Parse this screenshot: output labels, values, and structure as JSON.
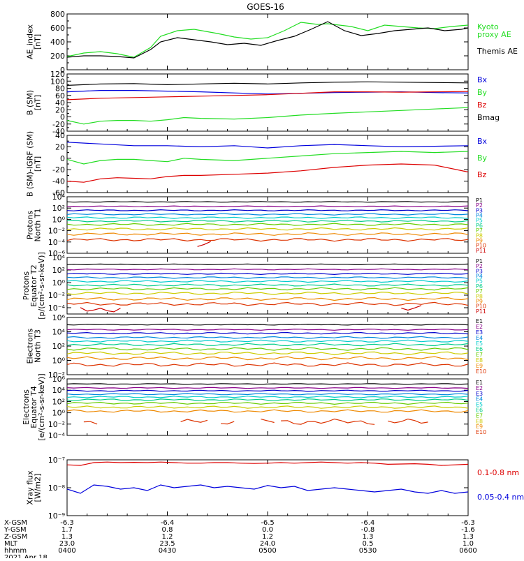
{
  "title": "GOES-16",
  "colors": {
    "black": "#000000",
    "green": "#22dd22",
    "blue": "#0000dd",
    "red": "#dd0000",
    "P": [
      "#000000",
      "#880088",
      "#0000cc",
      "#0088dd",
      "#00cccc",
      "#00cc88",
      "#66cc00",
      "#cccc00",
      "#ee8800",
      "#dd3300",
      "#cc0000"
    ],
    "E": [
      "#000000",
      "#880088",
      "#0000cc",
      "#0088dd",
      "#00cccc",
      "#00cc88",
      "#66cc00",
      "#cccc00",
      "#ee8800",
      "#dd3300"
    ]
  },
  "x_ticks": [
    {
      "x": 0,
      "xgsm": "-6.3",
      "ygsm": "1.7",
      "zgsm": "1.3",
      "mlt": "23.0",
      "hhmm": "0400"
    },
    {
      "x": 30,
      "xgsm": "-6.4",
      "ygsm": "0.8",
      "zgsm": "1.2",
      "mlt": "23.5",
      "hhmm": "0430"
    },
    {
      "x": 60,
      "xgsm": "-6.5",
      "ygsm": "0.0",
      "zgsm": "1.2",
      "mlt": "24.0",
      "hhmm": "0500"
    },
    {
      "x": 90,
      "xgsm": "-6.4",
      "ygsm": "-0.8",
      "zgsm": "1.3",
      "mlt": "0.5",
      "hhmm": "0530"
    },
    {
      "x": 120,
      "xgsm": "-6.3",
      "ygsm": "-1.6",
      "zgsm": "1.3",
      "mlt": "1.0",
      "hhmm": "0600"
    }
  ],
  "footer": {
    "row_labels": [
      "X-GSM",
      "Y-GSM",
      "Z-GSM",
      "MLT",
      "hhmm"
    ],
    "date": "2021 Apr 18"
  },
  "chart_data": [
    {
      "type": "line",
      "id": "ae",
      "ylabel": [
        "AE_index",
        "[nT]"
      ],
      "log": false,
      "ylim": [
        0,
        800
      ],
      "ticks": [
        0,
        200,
        400,
        600,
        800
      ],
      "tick_labels": [
        "0",
        "200",
        "400",
        "600",
        "800"
      ],
      "series": [
        {
          "name": "Kyoto proxy AE",
          "color": "green",
          "x": [
            0,
            5,
            10,
            15,
            20,
            25,
            28,
            33,
            38,
            45,
            50,
            55,
            60,
            65,
            70,
            75,
            78,
            85,
            90,
            95,
            100,
            105,
            110,
            115,
            120
          ],
          "y": [
            190,
            240,
            260,
            230,
            180,
            320,
            480,
            560,
            580,
            520,
            470,
            440,
            460,
            560,
            680,
            650,
            660,
            620,
            560,
            640,
            620,
            600,
            590,
            620,
            640
          ]
        },
        {
          "name": "Themis AE",
          "color": "black",
          "x": [
            0,
            5,
            10,
            15,
            20,
            25,
            28,
            33,
            38,
            43,
            48,
            53,
            58,
            63,
            68,
            73,
            78,
            83,
            88,
            93,
            98,
            103,
            108,
            113,
            118,
            120
          ],
          "y": [
            180,
            200,
            200,
            190,
            170,
            290,
            400,
            460,
            430,
            400,
            360,
            380,
            350,
            420,
            480,
            580,
            690,
            560,
            490,
            520,
            560,
            580,
            600,
            560,
            580,
            600
          ]
        }
      ],
      "right_labels": [
        {
          "text": [
            "Kyoto",
            "proxy AE"
          ],
          "color": "green"
        },
        {
          "text": [
            "Themis AE"
          ],
          "color": "black"
        }
      ]
    },
    {
      "type": "line",
      "id": "bsm",
      "ylabel": [
        "B (SM)",
        "[nT]"
      ],
      "log": false,
      "ylim": [
        -40,
        120
      ],
      "ticks": [
        -40,
        -20,
        0,
        20,
        40,
        60,
        80,
        100,
        120
      ],
      "tick_labels": [
        "-40",
        "-20",
        "0",
        "20",
        "40",
        "60",
        "80",
        "100",
        "120"
      ],
      "series": [
        {
          "name": "Bmag",
          "color": "black",
          "x": [
            0,
            10,
            20,
            30,
            40,
            50,
            60,
            70,
            80,
            90,
            100,
            110,
            120
          ],
          "y": [
            88,
            92,
            93,
            90,
            92,
            94,
            92,
            95,
            97,
            98,
            97,
            96,
            95
          ]
        },
        {
          "name": "Bx",
          "color": "blue",
          "x": [
            0,
            10,
            20,
            30,
            40,
            50,
            60,
            70,
            80,
            90,
            100,
            110,
            120
          ],
          "y": [
            70,
            74,
            74,
            72,
            70,
            67,
            64,
            66,
            68,
            69,
            70,
            68,
            67
          ]
        },
        {
          "name": "Bz",
          "color": "red",
          "x": [
            0,
            10,
            20,
            30,
            40,
            50,
            60,
            70,
            80,
            90,
            100,
            110,
            120
          ],
          "y": [
            48,
            52,
            54,
            56,
            58,
            60,
            62,
            66,
            70,
            70,
            69,
            70,
            71
          ]
        },
        {
          "name": "By",
          "color": "green",
          "x": [
            0,
            5,
            10,
            15,
            20,
            25,
            30,
            35,
            40,
            50,
            60,
            70,
            80,
            90,
            100,
            110,
            120
          ],
          "y": [
            -10,
            -20,
            -12,
            -10,
            -10,
            -12,
            -8,
            -2,
            -4,
            -6,
            -2,
            5,
            10,
            14,
            18,
            22,
            26
          ]
        }
      ],
      "right_labels": [
        {
          "text": [
            "Bx"
          ],
          "color": "blue"
        },
        {
          "text": [
            "By"
          ],
          "color": "green"
        },
        {
          "text": [
            "Bz"
          ],
          "color": "red"
        },
        {
          "text": [
            "Bmag"
          ],
          "color": "black"
        }
      ]
    },
    {
      "type": "line",
      "id": "bigrf",
      "ylabel": [
        "B (SM)-IGRF (SM)",
        "[nT]"
      ],
      "log": false,
      "ylim": [
        -60,
        40
      ],
      "ticks": [
        -60,
        -40,
        -20,
        0,
        20,
        40
      ],
      "tick_labels": [
        "-60",
        "-40",
        "-20",
        "0",
        "20",
        "40"
      ],
      "series": [
        {
          "name": "Bx",
          "color": "blue",
          "x": [
            0,
            10,
            20,
            30,
            40,
            50,
            60,
            70,
            80,
            90,
            100,
            110,
            120
          ],
          "y": [
            28,
            25,
            22,
            22,
            20,
            22,
            18,
            22,
            24,
            22,
            20,
            21,
            22
          ]
        },
        {
          "name": "By",
          "color": "green",
          "x": [
            0,
            5,
            10,
            15,
            20,
            25,
            30,
            35,
            40,
            50,
            60,
            70,
            80,
            90,
            100,
            110,
            120
          ],
          "y": [
            -2,
            -10,
            -4,
            -2,
            -2,
            -4,
            -6,
            0,
            -2,
            -4,
            0,
            4,
            8,
            10,
            12,
            10,
            12
          ]
        },
        {
          "name": "Bz",
          "color": "red",
          "x": [
            0,
            5,
            10,
            15,
            20,
            25,
            30,
            35,
            40,
            50,
            60,
            70,
            80,
            90,
            100,
            110,
            120
          ],
          "y": [
            -40,
            -42,
            -36,
            -34,
            -35,
            -36,
            -32,
            -30,
            -30,
            -28,
            -26,
            -22,
            -16,
            -12,
            -10,
            -12,
            -24
          ]
        }
      ],
      "right_labels": [
        {
          "text": [
            "Bx"
          ],
          "color": "blue"
        },
        {
          "text": [
            "By"
          ],
          "color": "green"
        },
        {
          "text": [
            "Bz"
          ],
          "color": "red"
        }
      ]
    },
    {
      "type": "line",
      "id": "pT1",
      "ylabel": [
        "Protons",
        "North T1"
      ],
      "log": true,
      "ylim": [
        -6,
        4
      ],
      "ticks": [
        -6,
        -4,
        -2,
        0,
        2,
        4
      ],
      "tick_labels": [
        "10⁻⁶",
        "10⁻⁴",
        "10⁻²",
        "10⁰",
        "10²",
        "10⁴"
      ],
      "series_log": [
        3.1,
        2.3,
        1.6,
        0.9,
        0.3,
        -0.3,
        -0.9,
        -1.7,
        -2.6,
        -3.6,
        -4.4
      ],
      "right_labels": [
        {
          "text": [
            "P1"
          ],
          "color": "P0"
        },
        {
          "text": [
            "P2"
          ],
          "color": "P1"
        },
        {
          "text": [
            "P3"
          ],
          "color": "P2"
        },
        {
          "text": [
            "P4"
          ],
          "color": "P3"
        },
        {
          "text": [
            "P5"
          ],
          "color": "P4"
        },
        {
          "text": [
            "P6"
          ],
          "color": "P5"
        },
        {
          "text": [
            "P7"
          ],
          "color": "P6"
        },
        {
          "text": [
            "P8"
          ],
          "color": "P7"
        },
        {
          "text": [
            "P9"
          ],
          "color": "P8"
        },
        {
          "text": [
            "P10"
          ],
          "color": "P9"
        },
        {
          "text": [
            "P11"
          ],
          "color": "P10"
        }
      ]
    },
    {
      "type": "line",
      "id": "pT2",
      "ylabel": [
        "Protons",
        "Equator T2",
        "[p/(cm²-s-sr-keV)]"
      ],
      "log": true,
      "ylim": [
        -5,
        4
      ],
      "ticks": [
        -4,
        -2,
        0,
        2,
        4
      ],
      "tick_labels": [
        "10⁻⁴",
        "10⁻²",
        "10⁰",
        "10²",
        "10⁴"
      ],
      "series_log": [
        2.9,
        2.1,
        1.4,
        0.8,
        0.2,
        -0.4,
        -1.0,
        -1.7,
        -2.6,
        -3.4,
        -4.2
      ],
      "right_labels": [
        {
          "text": [
            "P1"
          ],
          "color": "P0"
        },
        {
          "text": [
            "P2"
          ],
          "color": "P1"
        },
        {
          "text": [
            "P3"
          ],
          "color": "P2"
        },
        {
          "text": [
            "P4"
          ],
          "color": "P3"
        },
        {
          "text": [
            "P5"
          ],
          "color": "P4"
        },
        {
          "text": [
            "P6"
          ],
          "color": "P5"
        },
        {
          "text": [
            "P7"
          ],
          "color": "P6"
        },
        {
          "text": [
            "P8"
          ],
          "color": "P7"
        },
        {
          "text": [
            "P9"
          ],
          "color": "P8"
        },
        {
          "text": [
            "P10"
          ],
          "color": "P9"
        },
        {
          "text": [
            "P11"
          ],
          "color": "P10"
        }
      ]
    },
    {
      "type": "line",
      "id": "eT3",
      "ylabel": [
        "Electrons",
        "North T3"
      ],
      "log": true,
      "ylim": [
        -2,
        6
      ],
      "ticks": [
        -2,
        0,
        2,
        4,
        6
      ],
      "tick_labels": [
        "10⁻²",
        "10⁰",
        "10²",
        "10⁴",
        "10⁶"
      ],
      "series_log": [
        5.0,
        4.3,
        3.8,
        3.2,
        2.7,
        2.2,
        1.6,
        1.0,
        0.3,
        -0.6
      ],
      "right_labels": [
        {
          "text": [
            "E1"
          ],
          "color": "E0"
        },
        {
          "text": [
            "E2"
          ],
          "color": "E1"
        },
        {
          "text": [
            "E3"
          ],
          "color": "E2"
        },
        {
          "text": [
            "E4"
          ],
          "color": "E3"
        },
        {
          "text": [
            "E5"
          ],
          "color": "E4"
        },
        {
          "text": [
            "E6"
          ],
          "color": "E5"
        },
        {
          "text": [
            "E7"
          ],
          "color": "E6"
        },
        {
          "text": [
            "E8"
          ],
          "color": "E7"
        },
        {
          "text": [
            "E9"
          ],
          "color": "E8"
        },
        {
          "text": [
            "E10"
          ],
          "color": "E9"
        }
      ]
    },
    {
      "type": "line",
      "id": "eT4",
      "ylabel": [
        "Electrons",
        "Equator T4",
        "[e/(cm²-s-sr-keV)]"
      ],
      "log": true,
      "ylim": [
        -4,
        6
      ],
      "ticks": [
        -4,
        -2,
        0,
        2,
        4,
        6
      ],
      "tick_labels": [
        "10⁻⁴",
        "10⁻²",
        "10⁰",
        "10²",
        "10⁴",
        "10⁶"
      ],
      "series_log": [
        5.1,
        4.4,
        3.9,
        3.3,
        2.8,
        2.3,
        1.7,
        1.0,
        0.3,
        -1.6
      ],
      "right_labels": [
        {
          "text": [
            "E1"
          ],
          "color": "E0"
        },
        {
          "text": [
            "E2"
          ],
          "color": "E1"
        },
        {
          "text": [
            "E3"
          ],
          "color": "E2"
        },
        {
          "text": [
            "E4"
          ],
          "color": "E3"
        },
        {
          "text": [
            "E5"
          ],
          "color": "E4"
        },
        {
          "text": [
            "E6"
          ],
          "color": "E5"
        },
        {
          "text": [
            "E7"
          ],
          "color": "E6"
        },
        {
          "text": [
            "E8"
          ],
          "color": "E7"
        },
        {
          "text": [
            "E9"
          ],
          "color": "E8"
        },
        {
          "text": [
            "E10"
          ],
          "color": "E9"
        }
      ]
    },
    {
      "type": "line",
      "id": "xray",
      "ylabel": [
        "Xray flux",
        "[W/m2]"
      ],
      "log": true,
      "ylim": [
        -9,
        -7
      ],
      "ticks": [
        -9,
        -8,
        -7
      ],
      "tick_labels": [
        "10⁻⁹",
        "10⁻⁸",
        "10⁻⁷"
      ],
      "series": [
        {
          "name": "0.1-0.8 nm",
          "color": "red",
          "x": [
            0,
            4,
            8,
            12,
            16,
            20,
            24,
            28,
            32,
            36,
            40,
            44,
            48,
            52,
            56,
            60,
            64,
            68,
            72,
            76,
            80,
            84,
            88,
            92,
            96,
            100,
            104,
            108,
            112,
            116,
            120
          ],
          "y": [
            -7.18,
            -7.2,
            -7.1,
            -7.08,
            -7.1,
            -7.09,
            -7.1,
            -7.08,
            -7.1,
            -7.12,
            -7.12,
            -7.1,
            -7.1,
            -7.12,
            -7.13,
            -7.12,
            -7.1,
            -7.12,
            -7.1,
            -7.08,
            -7.1,
            -7.12,
            -7.1,
            -7.12,
            -7.16,
            -7.15,
            -7.14,
            -7.16,
            -7.2,
            -7.18,
            -7.16
          ]
        },
        {
          "name": "0.05-0.4 nm",
          "color": "blue",
          "x": [
            0,
            4,
            8,
            12,
            16,
            20,
            24,
            28,
            32,
            36,
            40,
            44,
            48,
            52,
            56,
            60,
            64,
            68,
            72,
            76,
            80,
            84,
            88,
            92,
            96,
            100,
            104,
            108,
            112,
            116,
            120
          ],
          "y": [
            -8.05,
            -8.2,
            -7.9,
            -7.95,
            -8.05,
            -8.0,
            -8.1,
            -7.9,
            -8.0,
            -7.95,
            -7.9,
            -8.0,
            -7.95,
            -8.0,
            -8.05,
            -7.92,
            -8.0,
            -7.95,
            -8.1,
            -8.05,
            -8.0,
            -8.05,
            -8.1,
            -8.15,
            -8.1,
            -8.05,
            -8.15,
            -8.2,
            -8.1,
            -8.2,
            -8.15
          ]
        }
      ],
      "right_labels": [
        {
          "text": [
            "0.1-0.8 nm"
          ],
          "color": "red"
        },
        {
          "text": [
            "0.05-0.4 nm"
          ],
          "color": "blue"
        }
      ]
    }
  ]
}
